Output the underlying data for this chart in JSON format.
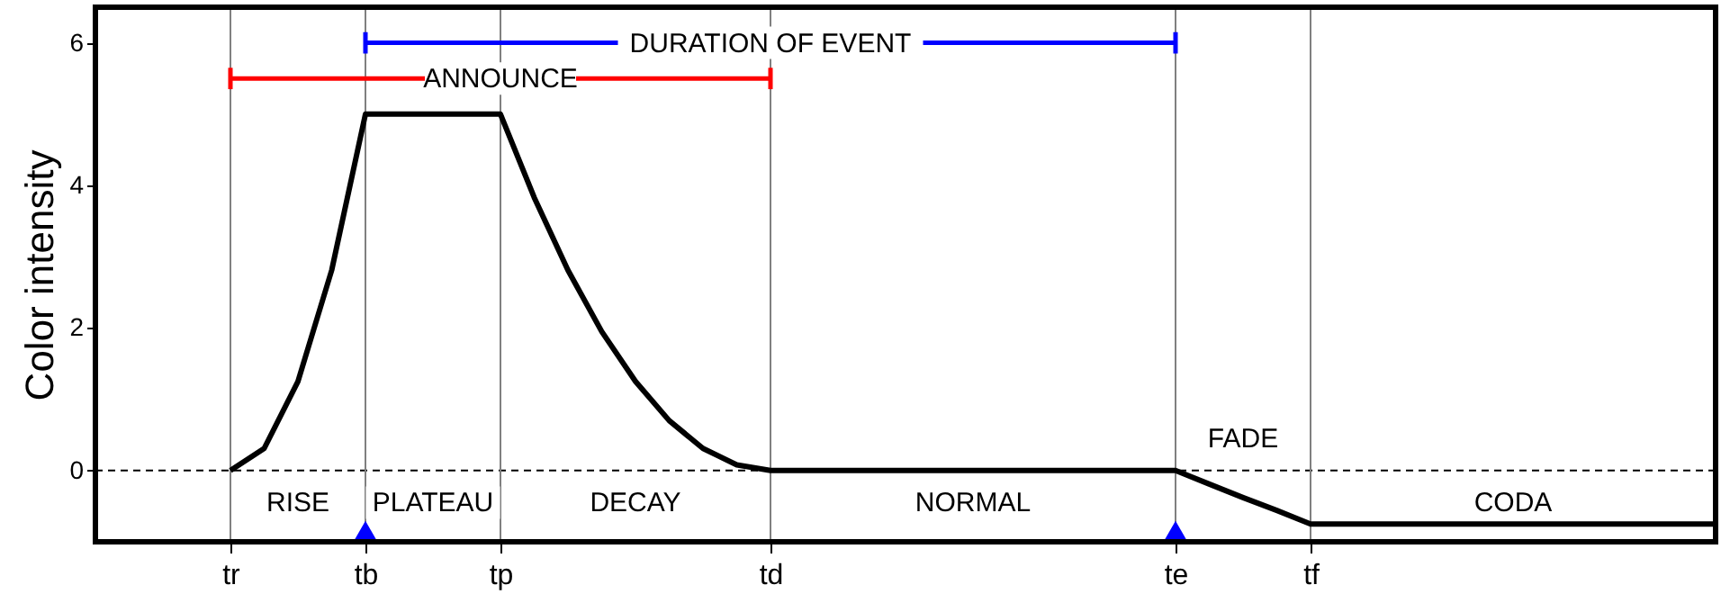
{
  "chart_data": {
    "type": "line",
    "ylabel": "Color intensity",
    "categories": [
      null,
      null,
      null,
      null,
      "tr",
      null,
      null,
      null,
      "tb",
      null,
      null,
      null,
      "tp",
      null,
      null,
      null,
      null,
      null,
      null,
      null,
      "td",
      null,
      null,
      null,
      null,
      null,
      null,
      null,
      null,
      null,
      null,
      null,
      "te",
      null,
      null,
      null,
      "tf",
      null,
      null,
      null,
      null,
      null,
      null,
      null,
      null,
      null,
      null,
      null,
      null
    ],
    "ylim": [
      -1,
      6.5
    ],
    "yticks": [
      0,
      2,
      4,
      6
    ],
    "grid": false,
    "series": [
      {
        "color": "#000000",
        "values": [
          null,
          null,
          null,
          null,
          0,
          0.31,
          1.25,
          2.81,
          5,
          5,
          5,
          5,
          5,
          3.83,
          2.81,
          1.95,
          1.25,
          0.7,
          0.31,
          0.08,
          0,
          0,
          0,
          0,
          0,
          0,
          0,
          0,
          0,
          0,
          0,
          0,
          0,
          -0.19,
          -0.38,
          -0.56,
          -0.75,
          -0.75,
          -0.75,
          -0.75,
          -0.75,
          -0.75,
          -0.75,
          -0.75,
          -0.75,
          -0.75,
          -0.75,
          -0.75,
          -0.75
        ]
      },
      {
        "color": "#ff0000",
        "x": [
          "tr",
          "td"
        ],
        "values": [
          5.5,
          5.5
        ],
        "errors": [
          0.15,
          0.15
        ]
      },
      {
        "color": "#0000ff",
        "x": [
          "tb",
          "te"
        ],
        "values": [
          6,
          6
        ],
        "errors": [
          0.15,
          0.15
        ]
      },
      {
        "type": "scatter",
        "marker": "triangle",
        "color": "#0000ff",
        "x": [
          "tb",
          "te"
        ],
        "values": [
          -0.87,
          -0.87
        ]
      }
    ],
    "ref_lines": [
      {
        "axis": "y",
        "value": 0,
        "color": "#000000",
        "line_style": "dashed"
      },
      {
        "axis": "x",
        "value": "tr",
        "color": "#808080"
      },
      {
        "axis": "x",
        "value": "tb",
        "color": "#808080"
      },
      {
        "axis": "x",
        "value": "tp",
        "color": "#808080"
      },
      {
        "axis": "x",
        "value": "td",
        "color": "#808080"
      },
      {
        "axis": "x",
        "value": "te",
        "color": "#808080"
      },
      {
        "axis": "x",
        "value": "tf",
        "color": "#808080"
      }
    ],
    "annotations": [
      {
        "text": "ANNOUNCE",
        "x": "tp",
        "y": 5.5
      },
      {
        "text": "DURATION OF EVENT",
        "x": "td",
        "y": 6
      },
      "RISE",
      "PLATEAU",
      "DECAY",
      "NORMAL",
      "FADE",
      "CODA"
    ]
  }
}
